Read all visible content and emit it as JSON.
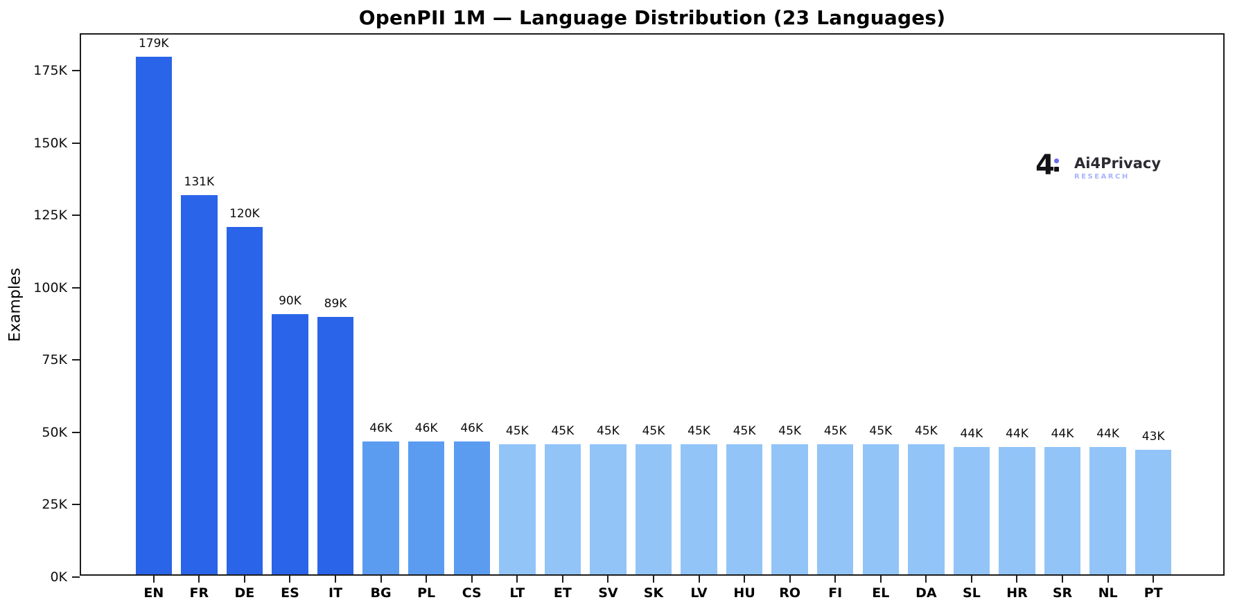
{
  "chart_data": {
    "type": "bar",
    "title": "OpenPII 1M — Language Distribution (23 Languages)",
    "xlabel": "",
    "ylabel": "Examples",
    "categories": [
      "EN",
      "FR",
      "DE",
      "ES",
      "IT",
      "BG",
      "PL",
      "CS",
      "LT",
      "ET",
      "SV",
      "SK",
      "LV",
      "HU",
      "RO",
      "FI",
      "EL",
      "DA",
      "SL",
      "HR",
      "SR",
      "NL",
      "PT"
    ],
    "values_k": [
      179,
      131,
      120,
      90,
      89,
      46,
      46,
      46,
      45,
      45,
      45,
      45,
      45,
      45,
      45,
      45,
      45,
      45,
      44,
      44,
      44,
      44,
      43
    ],
    "value_labels": [
      "179K",
      "131K",
      "120K",
      "90K",
      "89K",
      "46K",
      "46K",
      "46K",
      "45K",
      "45K",
      "45K",
      "45K",
      "45K",
      "45K",
      "45K",
      "45K",
      "45K",
      "45K",
      "44K",
      "44K",
      "44K",
      "44K",
      "43K"
    ],
    "bar_colors": [
      "#2a64e8",
      "#2a64e8",
      "#2a64e8",
      "#2a64e8",
      "#2a64e8",
      "#5b9cf1",
      "#5b9cf1",
      "#5b9cf1",
      "#92c4f8",
      "#92c4f8",
      "#92c4f8",
      "#92c4f8",
      "#92c4f8",
      "#92c4f8",
      "#92c4f8",
      "#92c4f8",
      "#92c4f8",
      "#92c4f8",
      "#92c4f8",
      "#92c4f8",
      "#92c4f8",
      "#92c4f8",
      "#92c4f8"
    ],
    "yticks_k": [
      0,
      25,
      50,
      75,
      100,
      125,
      150,
      175
    ],
    "ytick_labels": [
      "0K",
      "25K",
      "50K",
      "75K",
      "100K",
      "125K",
      "150K",
      "175K"
    ],
    "ylim": [
      0,
      187.5
    ],
    "grid": false,
    "legend": null,
    "spine_color": "#1c1c1c"
  },
  "logo": {
    "mark": "4",
    "wordmark": "Ai4Privacy",
    "subtitle": "RESEARCH",
    "wordmark_color": "#2b2b31",
    "subtitle_color": "#a9b3fb",
    "dot_color": "#6b6df2",
    "mark_color": "#121216"
  }
}
